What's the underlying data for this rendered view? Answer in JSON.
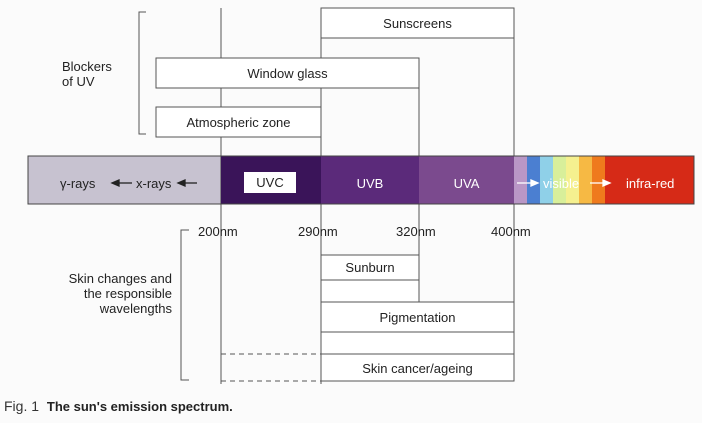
{
  "blockers": {
    "group_label": "Blockers\nof UV",
    "sunscreens": "Sunscreens",
    "window_glass": "Window glass",
    "atmospheric_zone": "Atmospheric zone"
  },
  "spectrum": {
    "gamma_rays": "γ-rays",
    "x_rays": "x-rays",
    "uvc": "UVC",
    "uvb": "UVB",
    "uva": "UVA",
    "visible": "visible",
    "infra_red": "infra-red",
    "colors": {
      "ionizing": "#c7c2d0",
      "uvc": "#3a1459",
      "uvb": "#5b2a7a",
      "uva": "#7b4a8e",
      "visible_strip": [
        "#b997c6",
        "#4b7fd1",
        "#8fd0e8",
        "#d8ef9a",
        "#f5f08f",
        "#f6b944",
        "#ef7a1d"
      ],
      "infra_red": "#d62a17"
    }
  },
  "wavelengths": {
    "w200": "200nm",
    "w290": "290nm",
    "w320": "320nm",
    "w400": "400nm"
  },
  "skin": {
    "group_label": "Skin changes and\nthe responsible\nwavelengths",
    "sunburn": "Sunburn",
    "pigmentation": "Pigmentation",
    "cancer": "Skin cancer/ageing"
  },
  "caption": {
    "fig": "Fig. 1",
    "title": "The sun's emission spectrum."
  }
}
